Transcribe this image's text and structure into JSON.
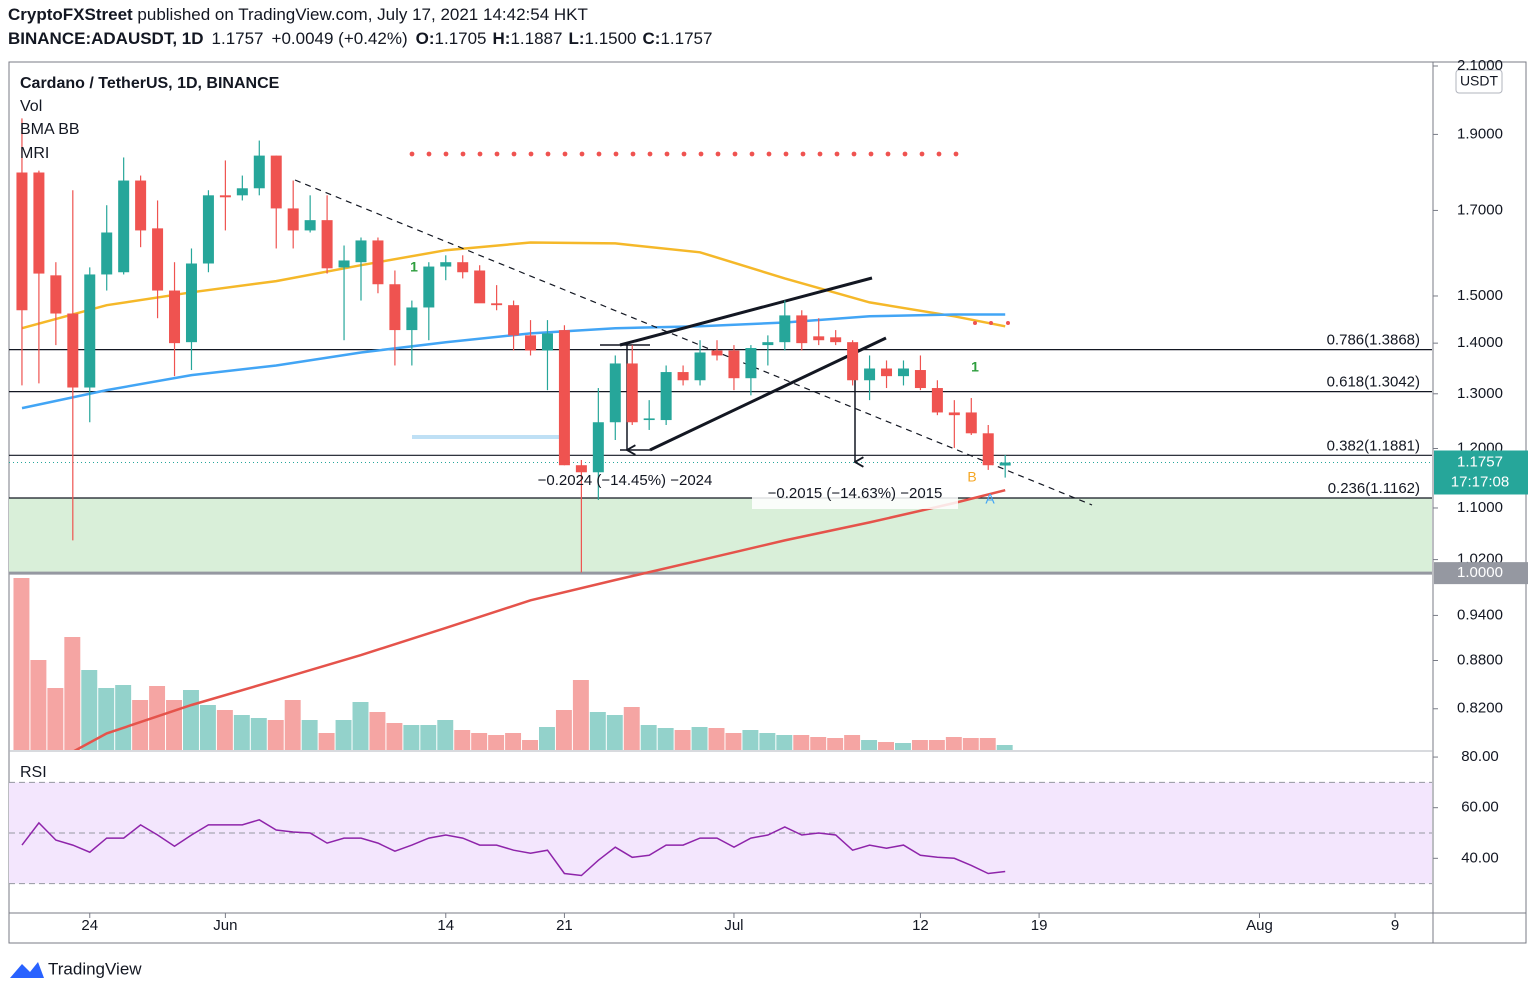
{
  "header": {
    "author": "CryptoFXStreet",
    "published": " published on TradingView.com, July 17, 2021 14:42:54 HKT",
    "symbol": "BINANCE:ADAUSDT, 1D",
    "last": "1.1757",
    "change": "+0.0049 (+0.42%)",
    "o_label": "O:",
    "o": "1.1705",
    "h_label": "H:",
    "h": "1.1887",
    "l_label": "L:",
    "l": "1.1500",
    "c_label": "C:",
    "c": "1.1757"
  },
  "footer": "TradingView",
  "chart_data": [
    {
      "type": "candlestick",
      "title": "Cardano / TetherUS, 1D, BINANCE",
      "legend": [
        "Vol",
        "BMA BB",
        "MRI"
      ],
      "currency": "USDT",
      "log": true,
      "up_color": "#26a69a",
      "down_color": "#ef5350",
      "x": [
        "2021-05-20",
        "2021-05-21",
        "2021-05-22",
        "2021-05-23",
        "2021-05-24",
        "2021-05-25",
        "2021-05-26",
        "2021-05-27",
        "2021-05-28",
        "2021-05-29",
        "2021-05-30",
        "2021-05-31",
        "2021-06-01",
        "2021-06-02",
        "2021-06-03",
        "2021-06-04",
        "2021-06-05",
        "2021-06-06",
        "2021-06-07",
        "2021-06-08",
        "2021-06-09",
        "2021-06-10",
        "2021-06-11",
        "2021-06-12",
        "2021-06-13",
        "2021-06-14",
        "2021-06-15",
        "2021-06-16",
        "2021-06-17",
        "2021-06-18",
        "2021-06-19",
        "2021-06-20",
        "2021-06-21",
        "2021-06-22",
        "2021-06-23",
        "2021-06-24",
        "2021-06-25",
        "2021-06-26",
        "2021-06-27",
        "2021-06-28",
        "2021-06-29",
        "2021-06-30",
        "2021-07-01",
        "2021-07-02",
        "2021-07-03",
        "2021-07-04",
        "2021-07-05",
        "2021-07-06",
        "2021-07-07",
        "2021-07-08",
        "2021-07-09",
        "2021-07-10",
        "2021-07-11",
        "2021-07-12",
        "2021-07-13",
        "2021-07-14",
        "2021-07-15",
        "2021-07-16",
        "2021-07-17"
      ],
      "open": [
        1.797,
        1.797,
        1.546,
        1.462,
        1.312,
        1.548,
        1.553,
        1.776,
        1.656,
        1.512,
        1.402,
        1.573,
        1.738,
        1.738,
        1.756,
        1.842,
        1.705,
        1.651,
        1.676,
        1.564,
        1.576,
        1.627,
        1.526,
        1.427,
        1.475,
        1.566,
        1.576,
        1.557,
        1.484,
        1.48,
        1.416,
        1.385,
        1.427,
        1.171,
        1.159,
        1.247,
        1.359,
        1.251,
        1.251,
        1.342,
        1.326,
        1.385,
        1.385,
        1.33,
        1.396,
        1.402,
        1.458,
        1.414,
        1.412,
        1.402,
        1.326,
        1.349,
        1.334,
        1.346,
        1.311,
        1.265,
        1.265,
        1.227,
        1.1705
      ],
      "high": [
        1.945,
        1.802,
        1.576,
        1.751,
        1.564,
        1.713,
        1.837,
        1.789,
        1.725,
        1.576,
        1.608,
        1.751,
        1.829,
        1.789,
        1.883,
        1.842,
        1.776,
        1.738,
        1.738,
        1.615,
        1.634,
        1.634,
        1.557,
        1.49,
        1.576,
        1.592,
        1.592,
        1.569,
        1.524,
        1.49,
        1.448,
        1.448,
        1.437,
        1.18,
        1.311,
        1.375,
        1.396,
        1.288,
        1.355,
        1.355,
        1.406,
        1.406,
        1.396,
        1.396,
        1.416,
        1.49,
        1.469,
        1.452,
        1.427,
        1.406,
        1.375,
        1.365,
        1.365,
        1.375,
        1.326,
        1.288,
        1.292,
        1.242,
        1.1887
      ],
      "low": [
        1.316,
        1.32,
        1.396,
        1.049,
        1.247,
        1.512,
        1.548,
        1.611,
        1.452,
        1.334,
        1.346,
        1.553,
        1.651,
        1.725,
        1.738,
        1.608,
        1.608,
        1.646,
        1.55,
        1.406,
        1.49,
        1.506,
        1.355,
        1.355,
        1.406,
        1.535,
        1.539,
        1.49,
        1.469,
        1.385,
        1.375,
        1.307,
        1.171,
        1.001,
        1.113,
        1.215,
        1.242,
        1.233,
        1.242,
        1.316,
        1.316,
        1.365,
        1.307,
        1.297,
        1.355,
        1.385,
        1.385,
        1.396,
        1.396,
        1.316,
        1.288,
        1.311,
        1.316,
        1.307,
        1.26,
        1.201,
        1.224,
        1.163,
        1.15
      ],
      "close": [
        1.469,
        1.55,
        1.462,
        1.312,
        1.548,
        1.646,
        1.776,
        1.651,
        1.512,
        1.4,
        1.573,
        1.738,
        1.733,
        1.756,
        1.842,
        1.705,
        1.651,
        1.676,
        1.562,
        1.58,
        1.627,
        1.526,
        1.427,
        1.475,
        1.566,
        1.576,
        1.553,
        1.484,
        1.48,
        1.416,
        1.385,
        1.42,
        1.171,
        1.159,
        1.247,
        1.359,
        1.247,
        1.254,
        1.342,
        1.326,
        1.381,
        1.375,
        1.33,
        1.39,
        1.402,
        1.458,
        1.4,
        1.406,
        1.402,
        1.326,
        1.349,
        1.334,
        1.349,
        1.311,
        1.265,
        1.26,
        1.227,
        1.171,
        1.1757
      ],
      "volume": {
        "name": "Vol",
        "up_color": "#93d2cb",
        "down_color": "#f5a5a3",
        "values": [
          172,
          90,
          62,
          113,
          80,
          62,
          65,
          50,
          64,
          50,
          60,
          45,
          40,
          35,
          32,
          30,
          50,
          30,
          17,
          30,
          48,
          38,
          27,
          25,
          25,
          30,
          20,
          17,
          15,
          17,
          10,
          23,
          40,
          70,
          38,
          35,
          43,
          25,
          22,
          20,
          23,
          22,
          17,
          20,
          17,
          15,
          15,
          13,
          12,
          15,
          10,
          8,
          7,
          10,
          10,
          13,
          12,
          12,
          5
        ]
      },
      "ma_lines": [
        {
          "color": "#f5b829",
          "x": [
            "2021-05-20",
            "2021-05-25",
            "2021-05-30",
            "2021-06-04",
            "2021-06-09",
            "2021-06-14",
            "2021-06-19",
            "2021-06-24",
            "2021-06-29",
            "2021-07-04",
            "2021-07-09",
            "2021-07-14",
            "2021-07-17"
          ],
          "values": [
            1.431,
            1.48,
            1.508,
            1.533,
            1.569,
            1.604,
            1.622,
            1.62,
            1.599,
            1.539,
            1.486,
            1.456,
            1.435
          ]
        },
        {
          "color": "#42a5f5",
          "x": [
            "2021-05-20",
            "2021-05-25",
            "2021-05-30",
            "2021-06-04",
            "2021-06-09",
            "2021-06-14",
            "2021-06-19",
            "2021-06-24",
            "2021-06-29",
            "2021-07-04",
            "2021-07-09",
            "2021-07-14",
            "2021-07-17"
          ],
          "values": [
            1.273,
            1.307,
            1.336,
            1.355,
            1.381,
            1.402,
            1.42,
            1.431,
            1.435,
            1.443,
            1.456,
            1.46,
            1.46
          ]
        },
        {
          "color": "#e5534b",
          "x": [
            "2021-05-23",
            "2021-05-25",
            "2021-05-30",
            "2021-06-04",
            "2021-06-09",
            "2021-06-14",
            "2021-06-19",
            "2021-06-24",
            "2021-06-29",
            "2021-07-04",
            "2021-07-09",
            "2021-07-14",
            "2021-07-17"
          ],
          "values": [
            0.77,
            0.791,
            0.8245,
            0.855,
            0.887,
            0.923,
            0.961,
            0.99,
            1.019,
            1.049,
            1.077,
            1.108,
            1.129
          ]
        }
      ],
      "levels": [
        {
          "value": 1.3868,
          "label": "0.786(1.3868)"
        },
        {
          "value": 1.3042,
          "label": "0.618(1.3042)"
        },
        {
          "value": 1.1881,
          "label": "0.382(1.1881)"
        },
        {
          "value": 1.1162,
          "label": "0.236(1.1162)"
        }
      ],
      "zone_color": "#d9efd9",
      "price_tags": [
        {
          "value": 1.1757,
          "label": "1.1757",
          "color": "#26a69a"
        },
        {
          "value": 1.0,
          "label": "1.0000",
          "color": "#9598a1"
        }
      ],
      "countdown": "17:17:08",
      "annotations": [
        "−0.2024 (−14.45%) −2024",
        "−0.2015 (−14.63%) −2015"
      ],
      "markers": [
        "1",
        "1",
        "B",
        "A"
      ],
      "xlim": [
        "2021-05-19",
        "2021-08-11"
      ],
      "xticks": [
        {
          "value": "2021-05-24",
          "label": "24"
        },
        {
          "value": "2021-06-01",
          "label": "Jun"
        },
        {
          "value": "2021-06-14",
          "label": "14"
        },
        {
          "value": "2021-06-21",
          "label": "21"
        },
        {
          "value": "2021-07-01",
          "label": "Jul"
        },
        {
          "value": "2021-07-12",
          "label": "12"
        },
        {
          "value": "2021-07-19",
          "label": "19"
        },
        {
          "value": "2021-08-01",
          "label": "Aug"
        },
        {
          "value": "2021-08-09",
          "label": "9"
        }
      ],
      "ylim": [
        0.772,
        2.1
      ],
      "yticks": [
        {
          "value": 2.1,
          "label": "2.1000"
        },
        {
          "value": 1.9,
          "label": "1.9000"
        },
        {
          "value": 1.7,
          "label": "1.7000"
        },
        {
          "value": 1.5,
          "label": "1.5000"
        },
        {
          "value": 1.4,
          "label": "1.4000"
        },
        {
          "value": 1.3,
          "label": "1.3000"
        },
        {
          "value": 1.2,
          "label": "1.2000"
        },
        {
          "value": 1.1,
          "label": "1.1000"
        },
        {
          "value": 1.02,
          "label": "1.0200"
        },
        {
          "value": 0.94,
          "label": "0.9400"
        },
        {
          "value": 0.88,
          "label": "0.8800"
        },
        {
          "value": 0.82,
          "label": "0.8200"
        }
      ]
    },
    {
      "type": "line",
      "name": "RSI",
      "color": "#8e24aa",
      "band": [
        30,
        70
      ],
      "band_color": "#f3e6fd",
      "midline": 50,
      "values": [
        45.2,
        54,
        47.2,
        45.2,
        42.4,
        48,
        48,
        53.2,
        49.2,
        44.8,
        49.2,
        53.2,
        53.2,
        53.2,
        55.2,
        51.2,
        50.4,
        50,
        46,
        48,
        48,
        46,
        42.8,
        45.2,
        48,
        49.2,
        48,
        45.2,
        45.2,
        43.2,
        42,
        43.2,
        34,
        33.2,
        39.2,
        44.4,
        40.4,
        41.2,
        45.2,
        45.2,
        48,
        48,
        44.4,
        48,
        49.2,
        52.4,
        49.2,
        50,
        49.2,
        43.2,
        45.2,
        44,
        45.2,
        41.2,
        40.4,
        40,
        37.2,
        34,
        34.8
      ],
      "ylim": [
        18,
        82
      ],
      "yticks": [
        {
          "value": 80,
          "label": "80.00"
        },
        {
          "value": 60,
          "label": "60.00"
        },
        {
          "value": 40,
          "label": "40.00"
        }
      ]
    }
  ]
}
